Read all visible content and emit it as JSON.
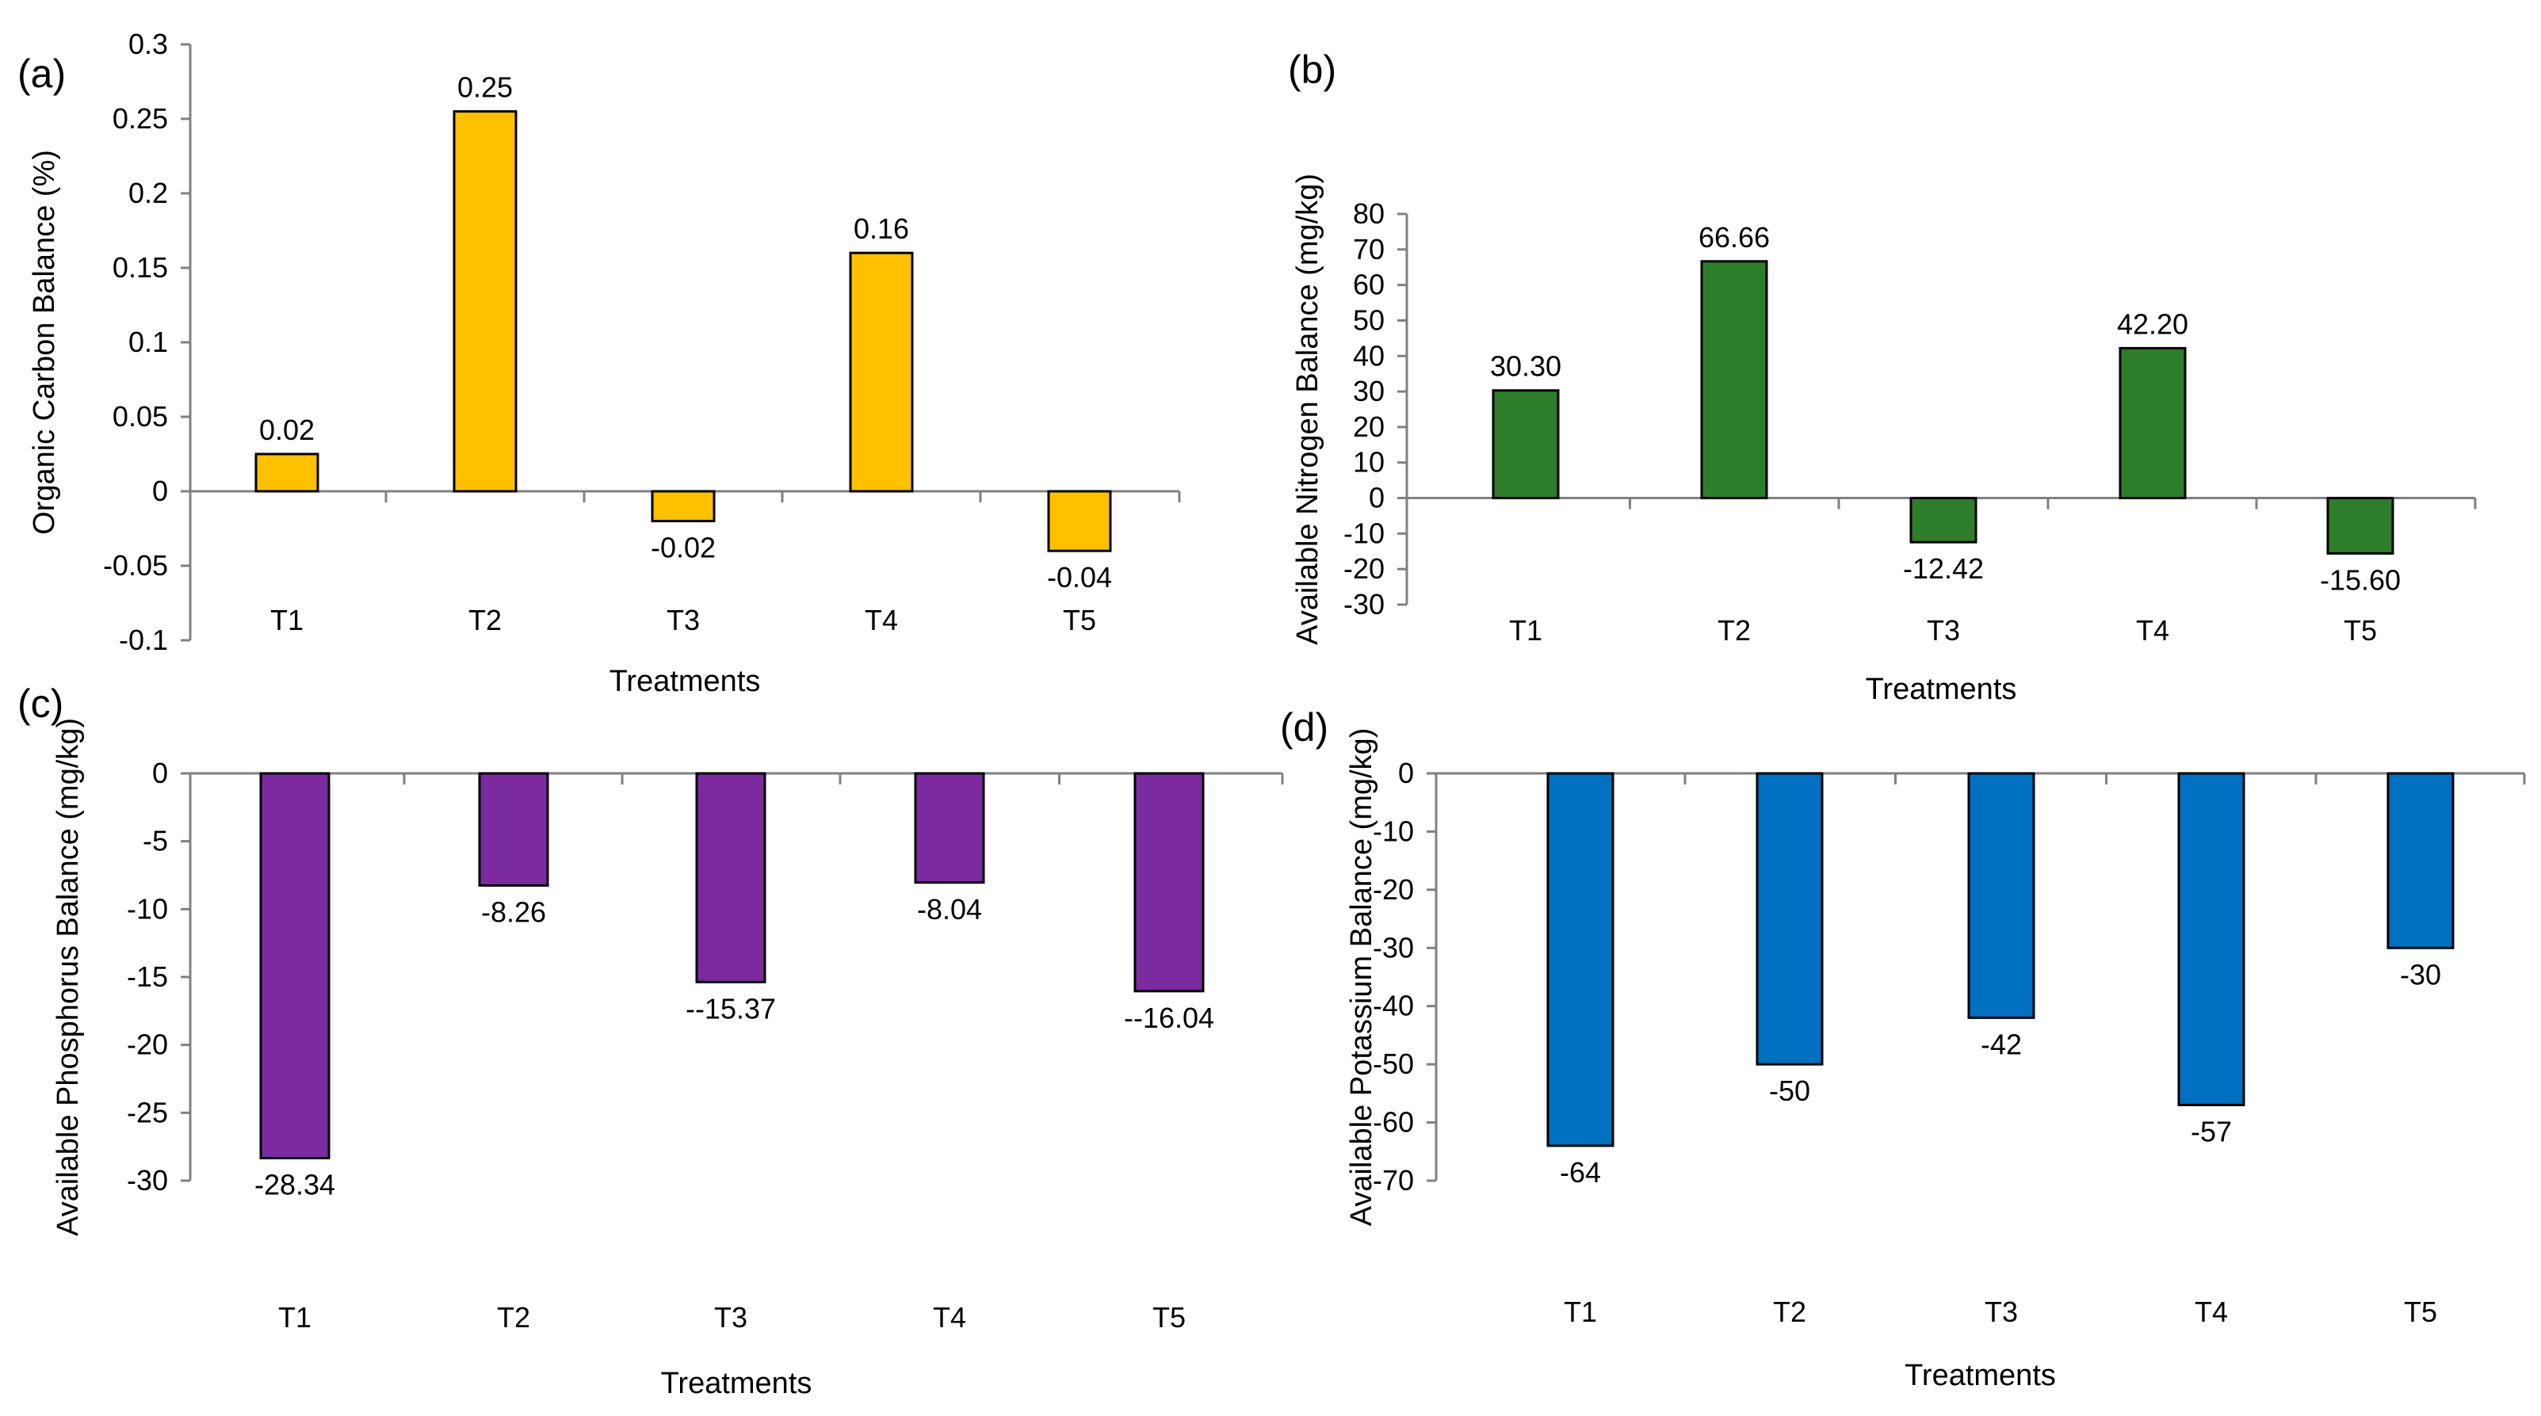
{
  "chart_data": [
    {
      "panel": "(a)",
      "type": "bar",
      "categories": [
        "T1",
        "T2",
        "T3",
        "T4",
        "T5"
      ],
      "values": [
        0.025,
        0.255,
        -0.02,
        0.16,
        -0.04
      ],
      "value_labels": [
        "0.02",
        "0.25",
        "-0.02",
        "0.16",
        "-0.04"
      ],
      "xlabel": "Treatments",
      "ylabel": "Organic Carbon Balance (%)",
      "ylim": [
        -0.1,
        0.3
      ],
      "yticks": [
        0.3,
        0.25,
        0.2,
        0.15,
        0.1,
        0.05,
        0,
        -0.05,
        -0.1
      ],
      "ytick_labels": [
        "0.3",
        "0.25",
        "0.2",
        "0.15",
        "0.1",
        "0.05",
        "0",
        "-0.05",
        "-0.1"
      ],
      "color": "#FFC000"
    },
    {
      "panel": "(b)",
      "type": "bar",
      "categories": [
        "T1",
        "T2",
        "T3",
        "T4",
        "T5"
      ],
      "values": [
        30.3,
        66.66,
        -12.42,
        42.2,
        -15.6
      ],
      "value_labels": [
        "30.30",
        "66.66",
        "-12.42",
        "42.20",
        "-15.60"
      ],
      "xlabel": "Treatments",
      "ylabel": "Available Nitrogen Balance (mg/kg)",
      "ylim": [
        -30,
        80
      ],
      "yticks": [
        80,
        70,
        60,
        50,
        40,
        30,
        20,
        10,
        0,
        -10,
        -20,
        -30
      ],
      "ytick_labels": [
        "80",
        "70",
        "60",
        "50",
        "40",
        "30",
        "20",
        "10",
        "0",
        "-10",
        "-20",
        "-30"
      ],
      "color": "#2E7D2A"
    },
    {
      "panel": "(c)",
      "type": "bar",
      "categories": [
        "T1",
        "T2",
        "T3",
        "T4",
        "T5"
      ],
      "values": [
        -28.34,
        -8.26,
        -15.37,
        -8.04,
        -16.04
      ],
      "value_labels": [
        "-28.34",
        "-8.26",
        "--15.37",
        "-8.04",
        "--16.04"
      ],
      "xlabel": "Treatments",
      "ylabel": "Available Phosphorus Balance (mg/kg)",
      "ylim": [
        -30,
        0
      ],
      "yticks": [
        0,
        -5,
        -10,
        -15,
        -20,
        -25,
        -30
      ],
      "ytick_labels": [
        "0",
        "-5",
        "-10",
        "-15",
        "-20",
        "-25",
        "-30"
      ],
      "color": "#7B2AA0"
    },
    {
      "panel": "(d)",
      "type": "bar",
      "categories": [
        "T1",
        "T2",
        "T3",
        "T4",
        "T5"
      ],
      "values": [
        -64,
        -50,
        -42,
        -57,
        -30
      ],
      "value_labels": [
        "-64",
        "-50",
        "-42",
        "-57",
        "-30"
      ],
      "xlabel": "Treatments",
      "ylabel": "Available Potassium Balance (mg/kg)",
      "ylim": [
        -70,
        0
      ],
      "yticks": [
        0,
        -10,
        -20,
        -30,
        -40,
        -50,
        -60,
        -70
      ],
      "ytick_labels": [
        "0",
        "-10",
        "-20",
        "-30",
        "-40",
        "-50",
        "-60",
        "-70"
      ],
      "color": "#0070C0"
    }
  ]
}
